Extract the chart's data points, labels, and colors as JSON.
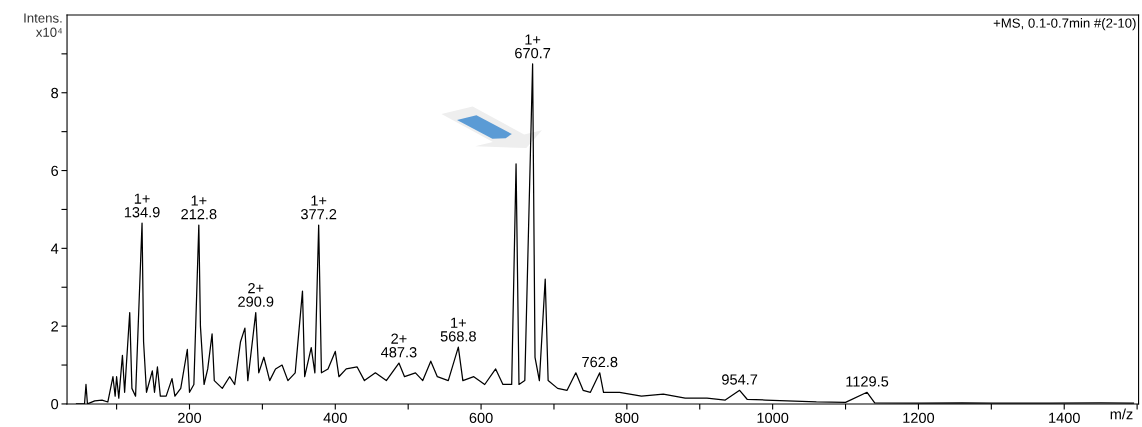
{
  "chart_data": {
    "type": "line",
    "xlabel": "m/z",
    "ylabel": "Intens.\nx10⁴",
    "xlim": [
      32,
      1502
    ],
    "ylim": [
      0,
      10
    ],
    "xticks": [
      {
        "value": 100,
        "label": null
      },
      200,
      {
        "value": 300,
        "label": null
      },
      400,
      {
        "value": 500,
        "label": null
      },
      600,
      {
        "value": 700,
        "label": null
      },
      800,
      {
        "value": 900,
        "label": null
      },
      1000,
      {
        "value": 1100,
        "label": null
      },
      1200,
      {
        "value": 1300,
        "label": null
      },
      1400,
      {
        "value": 1500,
        "label": null
      }
    ],
    "yticks": [
      0,
      {
        "value": 1,
        "label": null
      },
      2,
      {
        "value": 3,
        "label": null
      },
      4,
      {
        "value": 5,
        "label": null
      },
      6,
      {
        "value": 7,
        "label": null
      },
      8,
      {
        "value": 9,
        "label": null
      }
    ],
    "x": [
      45,
      56,
      58,
      60,
      70,
      80,
      88,
      95,
      98,
      100,
      103,
      108,
      111,
      118,
      121,
      126,
      134.9,
      137,
      141,
      149,
      152,
      156,
      160,
      168,
      176,
      180,
      188,
      197,
      200,
      206,
      212.8,
      215,
      220,
      225,
      231,
      234,
      245,
      255,
      262,
      270,
      276,
      280,
      290.9,
      295,
      302,
      310,
      318,
      327,
      335,
      345,
      355,
      358,
      367,
      372,
      377.2,
      381,
      390,
      400,
      405,
      415,
      430,
      440,
      455,
      470,
      487.3,
      495,
      510,
      520,
      531,
      540,
      555,
      568.8,
      575,
      590,
      605,
      620,
      630,
      642,
      648,
      652,
      660,
      670.7,
      674,
      680,
      688,
      692,
      705,
      718,
      730,
      740,
      750,
      762.8,
      768,
      790,
      820,
      850,
      880,
      910,
      935,
      954.7,
      965,
      990,
      1020,
      1060,
      1100,
      1129.5,
      1140,
      1200,
      1260,
      1300,
      1380,
      1450,
      1495
    ],
    "series": [
      {
        "color": "#000000",
        "values": [
          0,
          0,
          0.5,
          0,
          0.08,
          0.1,
          0.05,
          0.7,
          0.2,
          0.7,
          0.15,
          1.25,
          0.3,
          2.35,
          0.4,
          0.2,
          4.65,
          1.6,
          0.3,
          0.85,
          0.3,
          0.95,
          0.2,
          0.2,
          0.65,
          0.2,
          0.4,
          1.4,
          0.3,
          0.5,
          4.6,
          2.0,
          0.5,
          0.9,
          1.8,
          0.6,
          0.4,
          0.7,
          0.5,
          1.6,
          1.95,
          0.6,
          2.35,
          0.8,
          1.2,
          0.6,
          0.9,
          1.0,
          0.6,
          0.8,
          2.9,
          0.7,
          1.45,
          0.8,
          4.6,
          0.8,
          0.9,
          1.35,
          0.7,
          0.9,
          0.95,
          0.6,
          0.8,
          0.6,
          1.05,
          0.7,
          0.8,
          0.6,
          1.1,
          0.7,
          0.6,
          1.46,
          0.6,
          0.7,
          0.5,
          0.9,
          0.5,
          0.5,
          6.17,
          0.5,
          0.6,
          8.74,
          1.2,
          0.6,
          3.21,
          0.6,
          0.4,
          0.35,
          0.8,
          0.35,
          0.3,
          0.8,
          0.3,
          0.3,
          0.2,
          0.25,
          0.15,
          0.15,
          0.1,
          0.35,
          0.12,
          0.1,
          0.08,
          0.05,
          0.04,
          0.3,
          0.03,
          0.02,
          0.03,
          0.02,
          0.02,
          0.03,
          0.02
        ]
      }
    ],
    "annotations": [
      {
        "text": "1+\n134.9",
        "x": 134.9,
        "y": 4.65
      },
      {
        "text": "1+\n212.8",
        "x": 212.8,
        "y": 4.6
      },
      {
        "text": "2+\n290.9",
        "x": 290.9,
        "y": 2.35
      },
      {
        "text": "1+\n377.2",
        "x": 377.2,
        "y": 4.6
      },
      {
        "text": "2+\n487.3",
        "x": 487.3,
        "y": 1.05
      },
      {
        "text": "1+\n568.8",
        "x": 568.8,
        "y": 1.46
      },
      {
        "text": "1+\n670.7",
        "x": 670.7,
        "y": 8.74
      },
      {
        "text": "762.8",
        "x": 762.8,
        "y": 0.8
      },
      {
        "text": "954.7",
        "x": 954.7,
        "y": 0.35
      },
      {
        "text": "1129.5",
        "x": 1129.5,
        "y": 0.3
      },
      "+MS, 0.1-0.7min #(2-10)"
    ]
  }
}
